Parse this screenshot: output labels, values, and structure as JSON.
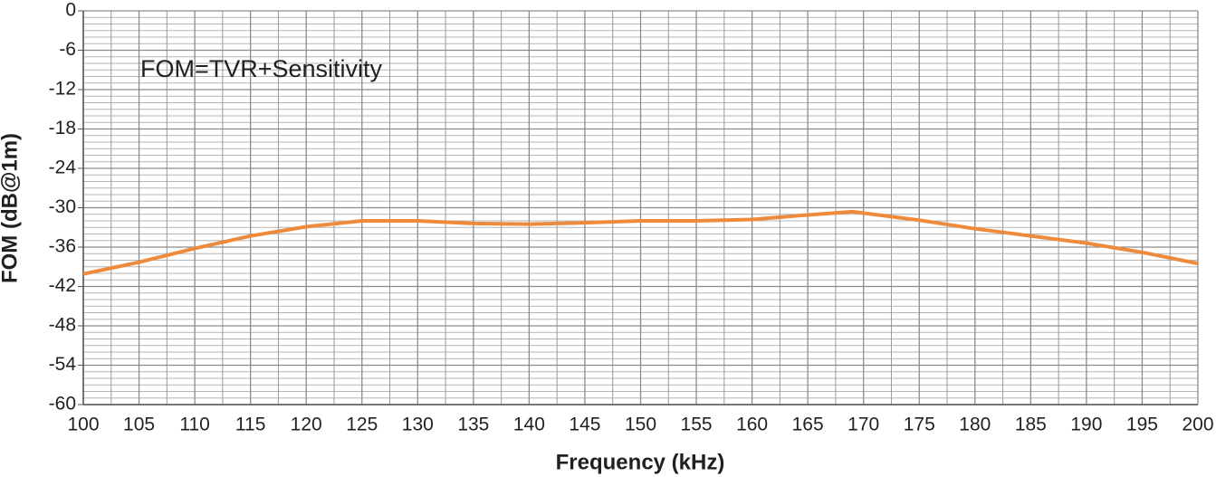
{
  "chart_data": {
    "type": "line",
    "annotation": "FOM=TVR+Sensitivity",
    "x_label": "Frequency (kHz)",
    "y_label": "FOM (dB@1m)",
    "xlim": [
      100,
      200
    ],
    "xticks": [
      100,
      105,
      110,
      115,
      120,
      125,
      130,
      135,
      140,
      145,
      150,
      155,
      160,
      165,
      170,
      175,
      180,
      185,
      190,
      195,
      200
    ],
    "ylim": [
      -60,
      0
    ],
    "yticks": [
      0,
      -6,
      -12,
      -18,
      -24,
      -30,
      -36,
      -42,
      -48,
      -54,
      -60
    ],
    "grid": true,
    "series": [
      {
        "name": "FOM",
        "color": "#ee8a3c",
        "x": [
          100,
          105,
          110,
          115,
          120,
          125,
          130,
          135,
          140,
          145,
          150,
          155,
          160,
          165,
          169,
          175,
          180,
          185,
          190,
          195,
          200
        ],
        "values": [
          -40.1,
          -38.3,
          -36.2,
          -34.3,
          -32.9,
          -32.0,
          -32.0,
          -32.4,
          -32.5,
          -32.3,
          -32.0,
          -32.0,
          -31.8,
          -31.1,
          -30.6,
          -31.9,
          -33.2,
          -34.3,
          -35.4,
          -36.8,
          -38.5
        ]
      }
    ]
  }
}
